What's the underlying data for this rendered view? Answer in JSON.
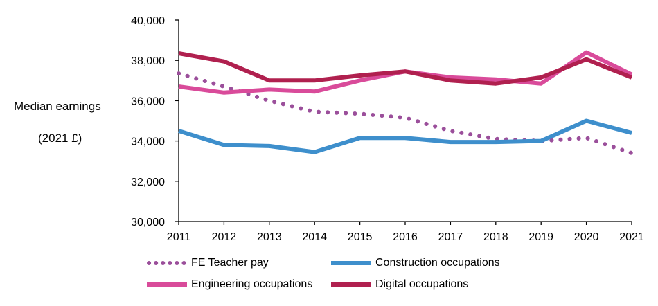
{
  "chart_data": {
    "type": "line",
    "ylabel_line1": "Median earnings",
    "ylabel_line2": "(2021 £)",
    "x": [
      "2011",
      "2012",
      "2013",
      "2014",
      "2015",
      "2016",
      "2017",
      "2018",
      "2019",
      "2020",
      "2021"
    ],
    "ylim": [
      30000,
      40000
    ],
    "yticks": [
      30000,
      32000,
      34000,
      36000,
      38000,
      40000
    ],
    "ytick_labels": [
      "30,000",
      "32,000",
      "34,000",
      "36,000",
      "38,000",
      "40,000"
    ],
    "grid": false,
    "legend_position": "bottom",
    "series": [
      {
        "name": "FE Teacher pay",
        "color": "#9B4F9B",
        "style": "dotted",
        "values": [
          37350,
          36700,
          36000,
          35450,
          35350,
          35150,
          34500,
          34100,
          34000,
          34150,
          33400
        ]
      },
      {
        "name": "Construction occupations",
        "color": "#3E8FCC",
        "style": "solid",
        "values": [
          34500,
          33800,
          33750,
          33450,
          34150,
          34150,
          33950,
          33950,
          34000,
          35000,
          34400
        ]
      },
      {
        "name": "Engineering occupations",
        "color": "#D94B9A",
        "style": "solid",
        "values": [
          36700,
          36400,
          36550,
          36450,
          37000,
          37450,
          37150,
          37050,
          36850,
          38400,
          37300
        ]
      },
      {
        "name": "Digital occupations",
        "color": "#B0204F",
        "style": "solid",
        "values": [
          38350,
          37950,
          37000,
          37000,
          37250,
          37450,
          37000,
          36850,
          37150,
          38050,
          37150
        ]
      }
    ]
  }
}
